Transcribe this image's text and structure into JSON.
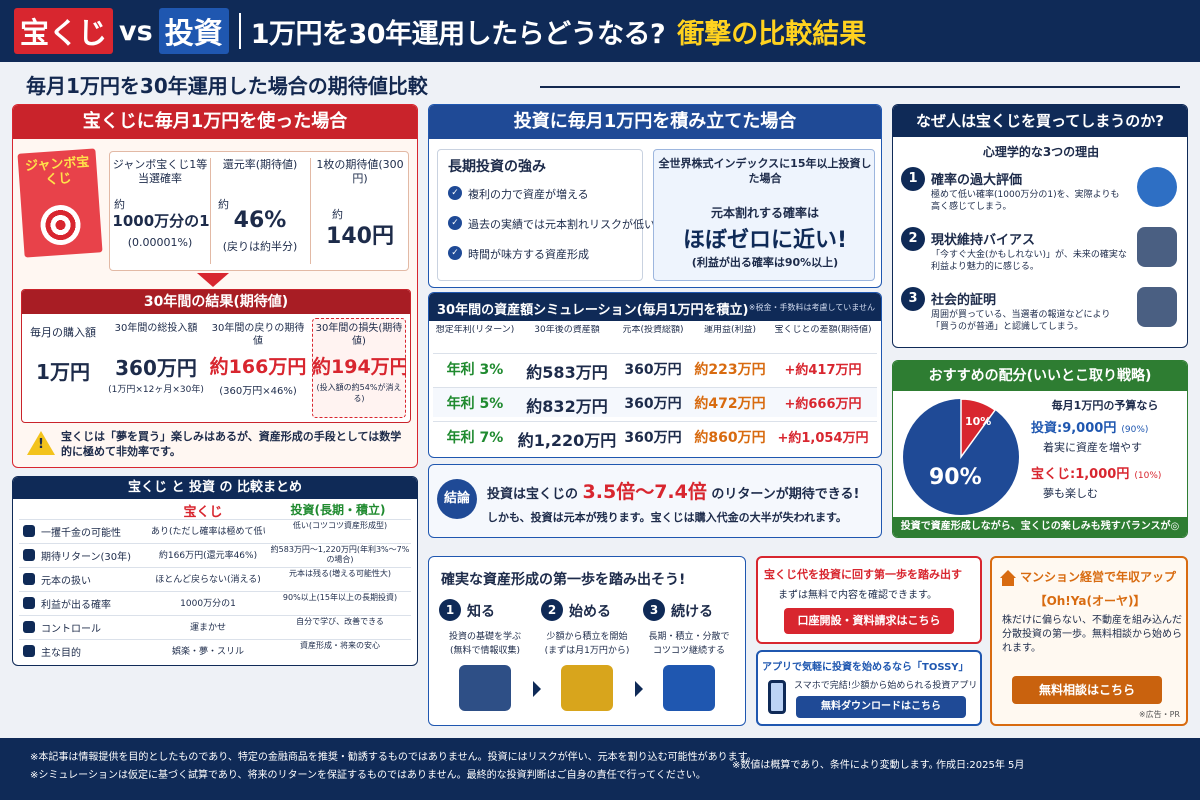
{
  "header": {
    "lottery": "宝くじ",
    "vs": "vs",
    "invest": "投資",
    "question": "1万円を30年運用したらどうなる?",
    "result": "衝撃の比較結果"
  },
  "subtitle": "毎月1万円を30年運用した場合の期待値比較",
  "lottery_section": {
    "title": "宝くじに毎月1万円を使った場合",
    "ticket": "ジャンボ宝くじ",
    "stats": [
      {
        "label": "ジャンボ宝くじ1等当選確率",
        "pre": "約",
        "value": "1000万分の1",
        "note": "(0.00001%)"
      },
      {
        "label": "還元率(期待値)",
        "pre": "約",
        "value": "46%",
        "note": "(戻りは約半分)"
      },
      {
        "label": "1枚の期待値(300円)",
        "pre": "約",
        "value": "140円",
        "note": ""
      }
    ],
    "result_title": "30年間の結果(期待値)",
    "results": [
      {
        "label": "毎月の購入額",
        "value": "1万円",
        "note": ""
      },
      {
        "label": "30年間の総投入額",
        "value": "360万円",
        "note": "(1万円×12ヶ月×30年)"
      },
      {
        "label": "30年間の戻りの期待値",
        "value": "約166万円",
        "note": "(360万円×46%)"
      },
      {
        "label": "30年間の損失(期待値)",
        "value": "約194万円",
        "note": "(投入額の約54%が消える)"
      }
    ],
    "warning": "宝くじは「夢を買う」楽しみはあるが、資産形成の手段としては数学的に極めて非効率です。"
  },
  "summary": {
    "title": "宝くじ と 投資 の 比較まとめ",
    "col1": "宝くじ",
    "col2": "投資(長期・積立)",
    "rows": [
      {
        "label": "一攫千金の可能性",
        "a": "あり(ただし確率は極めて低い)",
        "b": "低い(コツコツ資産形成型)"
      },
      {
        "label": "期待リターン(30年)",
        "a": "約166万円(還元率46%)",
        "b": "約583万円〜1,220万円(年利3%〜7%の場合)"
      },
      {
        "label": "元本の扱い",
        "a": "ほとんど戻らない(消える)",
        "b": "元本は残る(増える可能性大)"
      },
      {
        "label": "利益が出る確率",
        "a": "1000万分の1",
        "b": "90%以上(15年以上の長期投資)"
      },
      {
        "label": "コントロール",
        "a": "運まかせ",
        "b": "自分で学び、改善できる"
      },
      {
        "label": "主な目的",
        "a": "娯楽・夢・スリル",
        "b": "資産形成・将来の安心"
      }
    ]
  },
  "invest_section": {
    "title": "投資に毎月1万円を積み立てた場合",
    "strength_title": "長期投資の強み",
    "strengths": [
      "複利の力で資産が増える",
      "過去の実績では元本割れリスクが低い",
      "時間が味方する資産形成"
    ],
    "index_title": "全世界株式インデックスに15年以上投資した場合",
    "index_lead": "元本割れする確率は",
    "index_big": "ほぼゼロに近い!",
    "index_note": "(利益が出る確率は90%以上)"
  },
  "simulation": {
    "title": "30年間の資産額シミュレーション(毎月1万円を積立)",
    "note": "※税金・手数料は考慮していません",
    "headers": [
      "想定年利(リターン)",
      "30年後の資産額",
      "元本(投資総額)",
      "運用益(利益)",
      "宝くじとの差額(期待値)"
    ],
    "rows": [
      {
        "rate": "年利 3%",
        "asset": "約583万円",
        "principal": "360万円",
        "gain": "約223万円",
        "diff": "+約417万円"
      },
      {
        "rate": "年利 5%",
        "asset": "約832万円",
        "principal": "360万円",
        "gain": "約472万円",
        "diff": "+約666万円"
      },
      {
        "rate": "年利 7%",
        "asset": "約1,220万円",
        "principal": "360万円",
        "gain": "約860万円",
        "diff": "+約1,054万円"
      }
    ]
  },
  "conclusion": {
    "tag": "結論",
    "line1a": "投資は宝くじの",
    "line1b": "3.5倍〜7.4倍",
    "line1c": "のリターンが期待できる!",
    "line2": "しかも、投資は元本が残ります。宝くじは購入代金の大半が失われます。"
  },
  "why": {
    "title": "なぜ人は宝くじを買ってしまうのか?",
    "subtitle": "心理学的な3つの理由",
    "reasons": [
      {
        "num": "1",
        "title": "確率の過大評価",
        "text": "極めて低い確率(1000万分の1)を、実際よりも高く感じてしまう。"
      },
      {
        "num": "2",
        "title": "現状維持バイアス",
        "text": "「今すぐ大金(かもしれない)」が、未来の確実な利益より魅力的に感じる。"
      },
      {
        "num": "3",
        "title": "社会的証明",
        "text": "周囲が買っている、当選者の報道などにより「買うのが普通」と認識してしまう。"
      }
    ]
  },
  "allocation": {
    "title": "おすすめの配分(いいとこ取り戦略)",
    "budget": "毎月1万円の予算なら",
    "invest_label": "投資:9,000円",
    "invest_pct": "(90%)",
    "invest_note": "着実に資産を増やす",
    "lottery_label": "宝くじ:1,000円",
    "lottery_pct": "(10%)",
    "lottery_note": "夢も楽しむ",
    "big_pct": "90%",
    "small_pct": "10%",
    "footer": "投資で資産形成しながら、宝くじの楽しみも残すバランスが◎",
    "chart_data": {
      "type": "pie",
      "values": [
        90,
        10
      ],
      "categories": [
        "投資",
        "宝くじ"
      ]
    }
  },
  "steps": {
    "title": "確実な資産形成の第一歩を踏み出そう!",
    "items": [
      {
        "num": "1",
        "title": "知る",
        "text1": "投資の基礎を学ぶ",
        "text2": "(無料で情報収集)"
      },
      {
        "num": "2",
        "title": "始める",
        "text1": "少額から積立を開始",
        "text2": "(まずは月1万円から)"
      },
      {
        "num": "3",
        "title": "続ける",
        "text1": "長期・積立・分散で",
        "text2": "コツコツ継続する"
      }
    ]
  },
  "cta1": {
    "title": "宝くじ代を投資に回す第一歩を踏み出す",
    "text": "まずは無料で内容を確認できます。",
    "button": "口座開設・資料請求はこちら"
  },
  "cta2": {
    "title": "アプリで気軽に投資を始めるなら「TOSSY」",
    "text": "スマホで完結!少額から始められる投資アプリ",
    "button": "無料ダウンロードはこちら"
  },
  "cta3": {
    "title": "マンション経営で年収アップ",
    "brand": "【Oh!Ya(オーヤ)】",
    "text": "株だけに偏らない、不動産を組み込んだ分散投資の第一歩。無料相談から始められます。",
    "button": "無料相談はこちら",
    "pr": "※広告・PR"
  },
  "footer": {
    "line1": "※本記事は情報提供を目的としたものであり、特定の金融商品を推奨・勧誘するものではありません。投資にはリスクが伴い、元本を割り込む可能性があります。",
    "line2": "※シミュレーションは仮定に基づく試算であり、将来のリターンを保証するものではありません。最終的な投資判断はご自身の責任で行ってください。",
    "note": "※数値は概算であり、条件により変動します。",
    "date": "作成日:2025年 5月"
  },
  "colors": {
    "navy": "#0f2a57",
    "red": "#d8262f",
    "blue": "#1f57b0",
    "green": "#2e7d32",
    "orange": "#d86b10"
  }
}
